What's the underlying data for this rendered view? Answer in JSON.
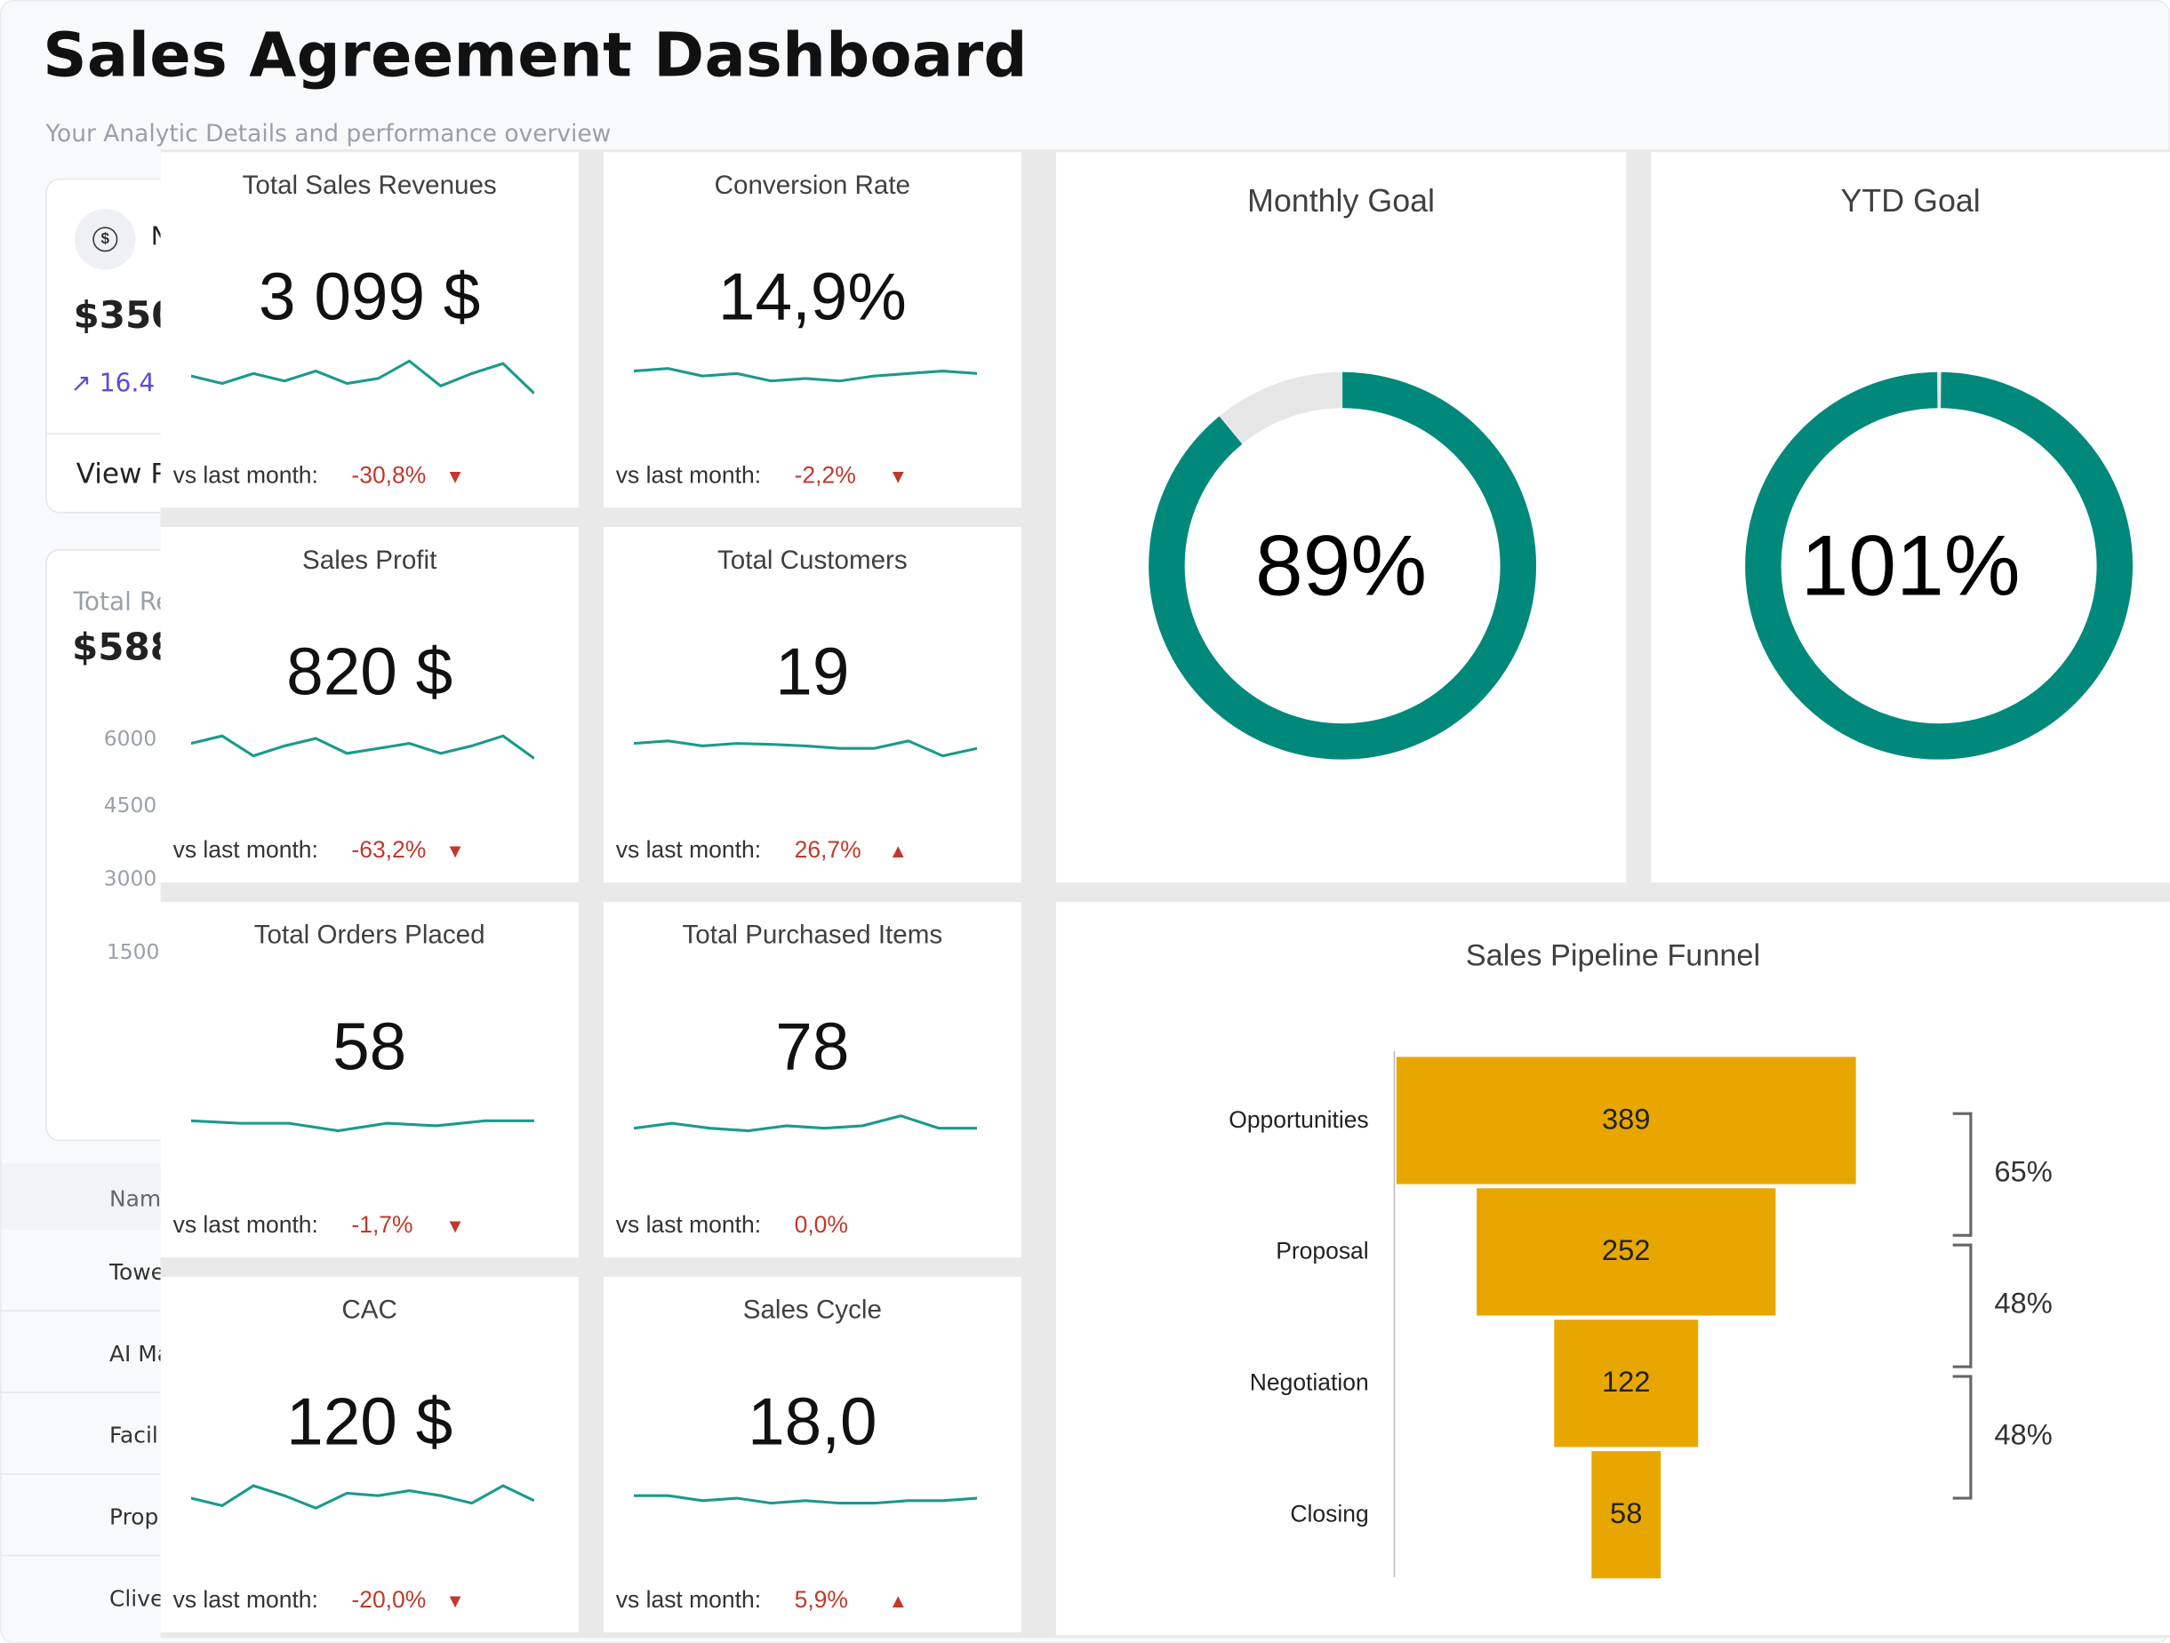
{
  "header": {
    "title": "Sales Agreement Dashboard",
    "subtitle": "Your Analytic Details and performance overview"
  },
  "background_app": {
    "card1": {
      "label": "N",
      "value": "$350",
      "change": "↗ 16.4",
      "link": "View R"
    },
    "card2": {
      "label": "Total Re",
      "value": "$588",
      "yticks": [
        "6000",
        "4500",
        "3000",
        "1500"
      ]
    },
    "table": {
      "header": "Nam",
      "rows": [
        "Towe",
        "AI Ma",
        "Facil",
        "Prop",
        "Clive"
      ]
    }
  },
  "kpis": [
    {
      "title": "Total Sales Revenues",
      "value": "3 099 $",
      "vs_label": "vs last month:",
      "change": "-30,8%",
      "direction": "down",
      "spark": [
        0.45,
        0.3,
        0.5,
        0.35,
        0.55,
        0.3,
        0.4,
        0.75,
        0.25,
        0.5,
        0.7,
        0.1
      ]
    },
    {
      "title": "Conversion Rate",
      "value": "14,9%",
      "vs_label": "vs last month:",
      "change": "-2,2%",
      "direction": "down",
      "spark": [
        0.55,
        0.6,
        0.45,
        0.5,
        0.35,
        0.4,
        0.35,
        0.45,
        0.5,
        0.55,
        0.5
      ]
    },
    {
      "title": "Sales Profit",
      "value": "820 $",
      "vs_label": "vs last month:",
      "change": "-63,2%",
      "direction": "down",
      "spark": [
        0.6,
        0.75,
        0.35,
        0.55,
        0.7,
        0.4,
        0.5,
        0.6,
        0.4,
        0.55,
        0.75,
        0.3
      ]
    },
    {
      "title": "Total Customers",
      "value": "19",
      "vs_label": "vs last month:",
      "change": "26,7%",
      "direction": "up",
      "spark": [
        0.6,
        0.65,
        0.55,
        0.6,
        0.58,
        0.55,
        0.5,
        0.5,
        0.65,
        0.35,
        0.5
      ]
    },
    {
      "title": "Total Orders Placed",
      "value": "58",
      "vs_label": "vs last month:",
      "change": "-1,7%",
      "direction": "down",
      "spark": [
        0.55,
        0.5,
        0.5,
        0.35,
        0.5,
        0.45,
        0.55,
        0.55
      ]
    },
    {
      "title": "Total Purchased Items",
      "value": "78",
      "vs_label": "vs last month:",
      "change": "0,0%",
      "direction": "none",
      "spark": [
        0.4,
        0.5,
        0.4,
        0.35,
        0.45,
        0.4,
        0.45,
        0.65,
        0.4,
        0.4
      ]
    },
    {
      "title": "CAC",
      "value": "120 $",
      "vs_label": "vs last month:",
      "change": "-20,0%",
      "direction": "down",
      "spark": [
        0.5,
        0.35,
        0.75,
        0.55,
        0.3,
        0.6,
        0.55,
        0.65,
        0.55,
        0.4,
        0.75,
        0.45
      ]
    },
    {
      "title": "Sales Cycle",
      "value": "18,0",
      "vs_label": "vs last month:",
      "change": "5,9%",
      "direction": "up",
      "spark": [
        0.55,
        0.55,
        0.45,
        0.5,
        0.4,
        0.45,
        0.4,
        0.4,
        0.45,
        0.45,
        0.5
      ]
    }
  ],
  "gauges": [
    {
      "title": "Monthly Goal",
      "value": "89%",
      "fraction": 0.89,
      "color": "#00897b",
      "track": "#e6e6e6"
    },
    {
      "title": "YTD Goal",
      "value": "101%",
      "fraction": 1.01,
      "color": "#00897b",
      "track": "#e6e6e6"
    }
  ],
  "chart_data": {
    "type": "bar",
    "title": "Sales Pipeline Funnel",
    "categories": [
      "Opportunities",
      "Proposal",
      "Negotiation",
      "Closing"
    ],
    "values": [
      389,
      252,
      122,
      58
    ],
    "conversions": [
      "65%",
      "48%",
      "48%"
    ],
    "color": "#e8a600"
  },
  "colors": {
    "spark": "#1a9a8c",
    "negative": "#c0392b"
  }
}
